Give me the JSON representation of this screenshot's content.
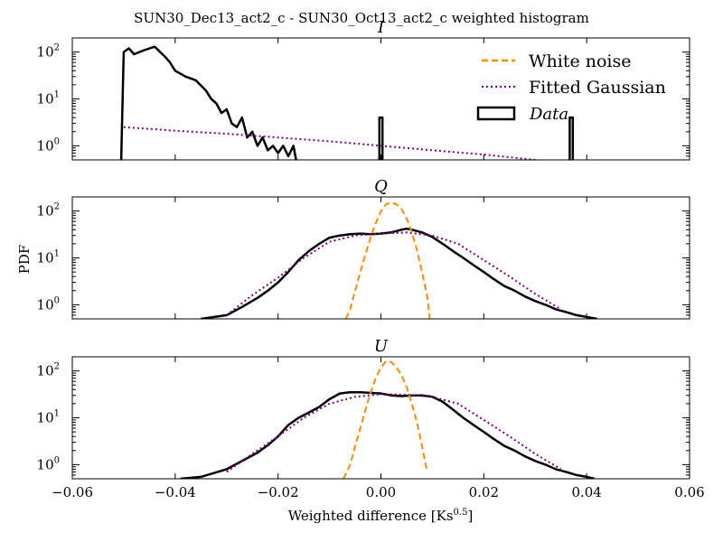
{
  "chart_data": {
    "type": "line",
    "title": "SUN30_Dec13_act2_c - SUN30_Oct13_act2_c weighted histogram",
    "xlabel": "Weighted difference [Ks",
    "xlabel_exponent": "0.5",
    "xlabel_suffix": "]",
    "ylabel": "PDF",
    "xlim": [
      -0.06,
      0.06
    ],
    "ylim": [
      0.5,
      200
    ],
    "yscale": "log",
    "x_ticks": [
      -0.06,
      -0.04,
      -0.02,
      0.0,
      0.02,
      0.04,
      0.06
    ],
    "x_tick_labels": [
      "−0.06",
      "−0.04",
      "−0.02",
      "0.00",
      "0.02",
      "0.04",
      "0.06"
    ],
    "y_tick_labels": [
      {
        "value": 100,
        "base": "10",
        "exp": "2"
      },
      {
        "value": 10,
        "base": "10",
        "exp": "1"
      },
      {
        "value": 1,
        "base": "10",
        "exp": "0"
      }
    ],
    "legend": {
      "placement": "top-right",
      "entries": [
        {
          "label": "White noise",
          "color": "#ff8c00",
          "style": "dashed"
        },
        {
          "label": "Fitted Gaussian",
          "color": "#800080",
          "style": "dotted"
        },
        {
          "label": "Data",
          "color": "#000000",
          "style": "box",
          "italic": true
        }
      ]
    },
    "panels": [
      {
        "title": "I",
        "series": [
          {
            "name": "Data",
            "color": "#000000",
            "x": [
              -0.0505,
              -0.05,
              -0.049,
              -0.048,
              -0.046,
              -0.044,
              -0.042,
              -0.041,
              -0.04,
              -0.038,
              -0.036,
              -0.034,
              -0.033,
              -0.032,
              -0.031,
              -0.03,
              -0.029,
              -0.028,
              -0.027,
              -0.026,
              -0.025,
              -0.024,
              -0.023,
              -0.022,
              -0.021,
              -0.02,
              -0.019,
              -0.018,
              -0.017,
              -0.0165
            ],
            "y": [
              0.5,
              100,
              120,
              90,
              110,
              130,
              80,
              60,
              40,
              30,
              25,
              15,
              10,
              8,
              5,
              6,
              3,
              2.5,
              4,
              1.5,
              2,
              1,
              1.5,
              0.8,
              1,
              0.7,
              1,
              0.6,
              1,
              0.5
            ]
          },
          {
            "name": "Data",
            "color": "#000000",
            "x": [
              -0.0003,
              -0.0003,
              0.0003,
              0.0003
            ],
            "y": [
              0.5,
              4,
              4,
              0.5
            ]
          },
          {
            "name": "Data",
            "color": "#000000",
            "x": [
              0.0367,
              0.0367,
              0.0373,
              0.0373
            ],
            "y": [
              0.5,
              4,
              4,
              0.5
            ]
          },
          {
            "name": "Fitted Gaussian",
            "color": "#800080",
            "dash": "2,3",
            "x": [
              -0.05,
              -0.04,
              -0.03,
              -0.02,
              -0.01,
              0.0,
              0.01,
              0.02,
              0.03
            ],
            "y": [
              2.5,
              2.1,
              1.8,
              1.5,
              1.25,
              1.0,
              0.8,
              0.65,
              0.5
            ]
          }
        ]
      },
      {
        "title": "Q",
        "series": [
          {
            "name": "Data",
            "color": "#000000",
            "x": [
              -0.035,
              -0.03,
              -0.027,
              -0.024,
              -0.022,
              -0.02,
              -0.018,
              -0.016,
              -0.014,
              -0.012,
              -0.01,
              -0.008,
              -0.006,
              -0.004,
              -0.002,
              0.0,
              0.002,
              0.004,
              0.005,
              0.006,
              0.008,
              0.01,
              0.012,
              0.014,
              0.016,
              0.018,
              0.02,
              0.022,
              0.024,
              0.026,
              0.028,
              0.03,
              0.032,
              0.034,
              0.036,
              0.038,
              0.04,
              0.042
            ],
            "y": [
              0.5,
              0.6,
              0.9,
              1.4,
              2,
              3,
              5,
              9,
              14,
              20,
              27,
              30,
              32,
              33,
              32,
              33,
              35,
              40,
              42,
              40,
              35,
              28,
              20,
              14,
              10,
              7,
              5,
              3.5,
              2.5,
              2,
              1.5,
              1.2,
              1,
              0.8,
              0.7,
              0.6,
              0.55,
              0.5
            ]
          },
          {
            "name": "Fitted Gaussian",
            "color": "#800080",
            "dash": "2,3",
            "x": [
              -0.03,
              -0.025,
              -0.02,
              -0.015,
              -0.01,
              -0.005,
              0.0,
              0.005,
              0.01,
              0.015,
              0.02,
              0.025,
              0.03,
              0.035
            ],
            "y": [
              0.6,
              1.6,
              3.8,
              10,
              22,
              30,
              33,
              35,
              30,
              20,
              9,
              4,
              1.7,
              0.8
            ]
          },
          {
            "name": "White noise",
            "color": "#ff8c00",
            "dash": "7,4",
            "x": [
              -0.0068,
              -0.006,
              -0.005,
              -0.004,
              -0.003,
              -0.002,
              -0.001,
              0.0,
              0.001,
              0.002,
              0.003,
              0.004,
              0.005,
              0.006,
              0.007,
              0.008,
              0.009,
              0.0095
            ],
            "y": [
              0.5,
              0.8,
              2,
              5,
              12,
              28,
              55,
              100,
              140,
              150,
              140,
              110,
              70,
              35,
              15,
              5,
              1.5,
              0.5
            ]
          }
        ]
      },
      {
        "title": "U",
        "series": [
          {
            "name": "Data",
            "color": "#000000",
            "x": [
              -0.039,
              -0.035,
              -0.03,
              -0.027,
              -0.024,
              -0.022,
              -0.02,
              -0.018,
              -0.016,
              -0.014,
              -0.012,
              -0.01,
              -0.008,
              -0.006,
              -0.004,
              -0.002,
              0.0,
              0.002,
              0.004,
              0.006,
              0.008,
              0.01,
              0.012,
              0.014,
              0.016,
              0.018,
              0.02,
              0.022,
              0.024,
              0.026,
              0.028,
              0.03,
              0.032,
              0.034,
              0.036,
              0.038,
              0.04,
              0.0415
            ],
            "y": [
              0.5,
              0.55,
              0.8,
              1.2,
              1.8,
              2.6,
              4,
              7,
              10,
              13,
              17,
              25,
              33,
              35,
              35,
              34,
              33,
              30,
              29,
              30,
              30,
              28,
              22,
              15,
              10,
              7,
              5,
              3.5,
              2.5,
              2,
              1.5,
              1.2,
              1,
              0.8,
              0.7,
              0.6,
              0.55,
              0.5
            ]
          },
          {
            "name": "Fitted Gaussian",
            "color": "#800080",
            "dash": "2,3",
            "x": [
              -0.03,
              -0.025,
              -0.02,
              -0.015,
              -0.01,
              -0.005,
              0.0,
              0.005,
              0.01,
              0.015,
              0.02,
              0.025,
              0.03,
              0.035
            ],
            "y": [
              0.7,
              1.7,
              4,
              10,
              20,
              28,
              32,
              31,
              28,
              20,
              9,
              4,
              1.7,
              0.8
            ]
          },
          {
            "name": "White noise",
            "color": "#ff8c00",
            "dash": "7,4",
            "x": [
              -0.0073,
              -0.006,
              -0.005,
              -0.004,
              -0.003,
              -0.002,
              -0.001,
              0.0,
              0.001,
              0.002,
              0.003,
              0.004,
              0.005,
              0.006,
              0.007,
              0.008,
              0.009
            ],
            "y": [
              0.5,
              1,
              2.5,
              6,
              15,
              35,
              70,
              120,
              160,
              155,
              120,
              80,
              45,
              20,
              8,
              2.5,
              0.7
            ]
          }
        ]
      }
    ]
  }
}
